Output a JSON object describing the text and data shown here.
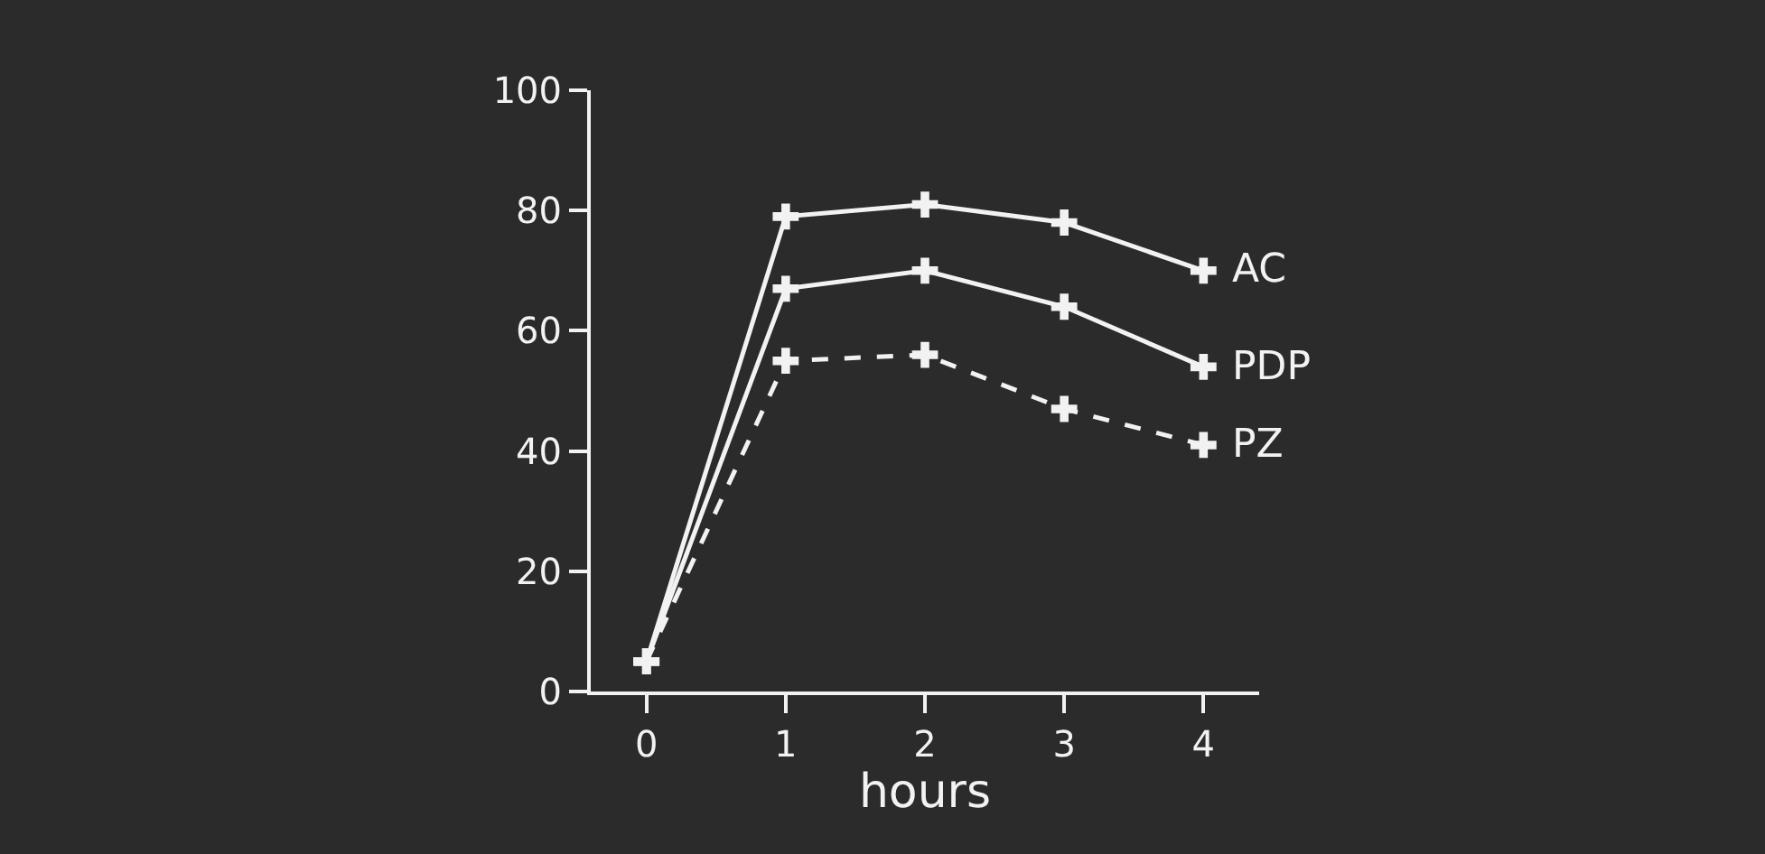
{
  "chart_data": {
    "type": "line",
    "xlabel": "hours",
    "x": [
      0,
      1,
      2,
      3,
      4
    ],
    "series": [
      {
        "name": "AC",
        "color": "#f2f2f2",
        "values": [
          5,
          79,
          81,
          78,
          70
        ]
      },
      {
        "name": "PDP",
        "color": "#f2f2f2",
        "values": [
          5,
          67,
          70,
          64,
          54
        ]
      },
      {
        "name": "PZ",
        "color": "#f2f2f2",
        "values": [
          5,
          55,
          56,
          47,
          41
        ],
        "line_style": "dashed"
      }
    ],
    "xlim": [
      -0.4,
      4.4
    ],
    "xticks": [
      0,
      1,
      2,
      3,
      4
    ],
    "ylim": [
      0,
      100
    ],
    "yticks": [
      0,
      20,
      40,
      60,
      80,
      100
    ],
    "grid": false,
    "legend": "right",
    "marker": "cross",
    "line_style": "solid"
  }
}
